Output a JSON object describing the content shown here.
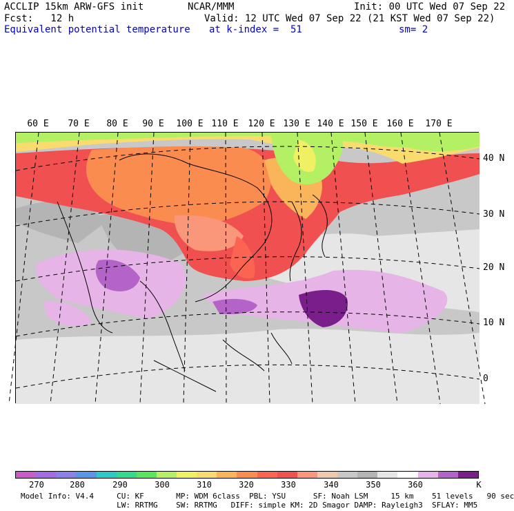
{
  "header": {
    "line1_left": "ACCLIP 15km ARW-GFS init",
    "line1_center": "NCAR/MMM",
    "line1_right": "Init: 00 UTC Wed 07 Sep 22",
    "line2_left": "Fcst:   12 h",
    "line2_right": "Valid: 12 UTC Wed 07 Sep 22 (21 KST Wed 07 Sep 22)",
    "line3_left": "Equivalent potential temperature",
    "line3_center": "at k-index =  51",
    "line3_right": "sm= 2"
  },
  "map": {
    "lon_labels": [
      "60 E",
      "70 E",
      "80 E",
      "90 E",
      "100 E",
      "110 E",
      "120 E",
      "130 E",
      "140 E",
      "150 E",
      "160 E",
      "170 E"
    ],
    "lat_labels": [
      "40 N",
      "30 N",
      "20 N",
      "10 N",
      "0"
    ]
  },
  "colorbar": {
    "colors": [
      "#c85cc8",
      "#a06ee0",
      "#8c82e6",
      "#5a96e6",
      "#2ec8c8",
      "#32dc8c",
      "#5ae65a",
      "#b4f064",
      "#f0f064",
      "#fadc6e",
      "#fab45a",
      "#fa8c50",
      "#fa6450",
      "#f05050",
      "#fa967a",
      "#f0c8aa",
      "#c8c8c8",
      "#b4b4b4",
      "#e6e6e6",
      "#ffffff",
      "#e6b4e6",
      "#b464c8",
      "#7a1e8c"
    ],
    "labels": [
      "270",
      "280",
      "290",
      "300",
      "310",
      "320",
      "330",
      "340",
      "350",
      "360"
    ],
    "unit": "K"
  },
  "footer": {
    "line1": "Model Info: V4.4     CU: KF       MP: WDM 6class  PBL: YSU      SF: Noah LSM     15 km    51 levels   90 sec",
    "line2": "                     LW: RRTMG    SW: RRTMG   DIFF: simple KM: 2D Smagor DAMP: Rayleigh3  SFLAY: MM5"
  }
}
